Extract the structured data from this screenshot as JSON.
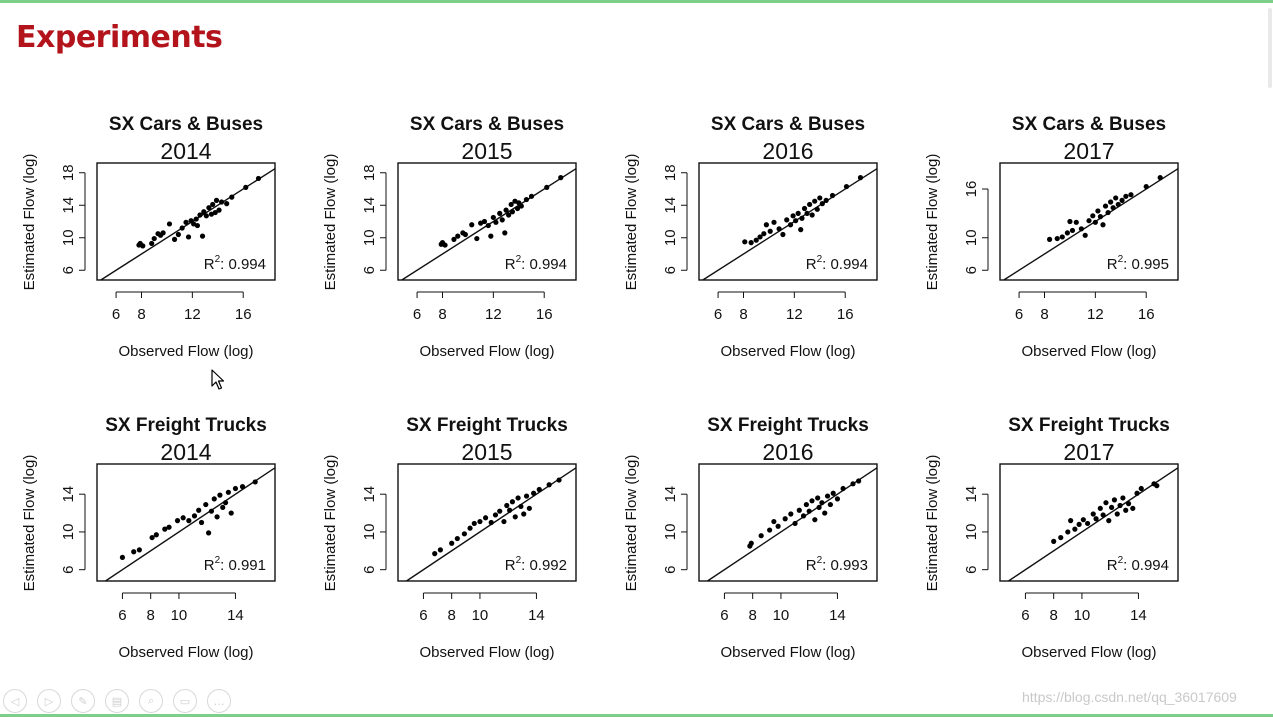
{
  "slide": {
    "title": "Experiments",
    "watermark": "https://blog.csdn.net/qq_36017609"
  },
  "toolbar": {
    "buttons": [
      {
        "name": "previous-icon",
        "glyph": "◁"
      },
      {
        "name": "next-icon",
        "glyph": "▷"
      },
      {
        "name": "pen-icon",
        "glyph": "✎"
      },
      {
        "name": "slides-icon",
        "glyph": "▤"
      },
      {
        "name": "zoom-icon",
        "glyph": "⌕"
      },
      {
        "name": "screen-icon",
        "glyph": "▭"
      },
      {
        "name": "more-icon",
        "glyph": "…"
      }
    ]
  },
  "chart_data": [
    {
      "type": "scatter",
      "title": "SX Cars & Buses",
      "year": "2014",
      "xlabel": "Observed Flow (log)",
      "ylabel": "Estimated Flow (log)",
      "xlim": [
        4.5,
        18.5
      ],
      "ylim": [
        4.8,
        19.2
      ],
      "xticks": [
        6,
        8,
        12,
        16
      ],
      "yticks": [
        6,
        10,
        14,
        18
      ],
      "r2_label": "R",
      "r2_sup": "2",
      "r2_value": ": 0.994",
      "points": [
        [
          7.8,
          9.1
        ],
        [
          7.9,
          9.3
        ],
        [
          8.1,
          9.0
        ],
        [
          8.8,
          9.3
        ],
        [
          9.0,
          9.9
        ],
        [
          9.3,
          10.5
        ],
        [
          9.5,
          10.3
        ],
        [
          9.7,
          10.6
        ],
        [
          10.2,
          11.7
        ],
        [
          10.6,
          9.8
        ],
        [
          10.9,
          10.4
        ],
        [
          11.2,
          11.2
        ],
        [
          11.5,
          11.9
        ],
        [
          11.7,
          10.1
        ],
        [
          11.9,
          12.1
        ],
        [
          12.1,
          11.7
        ],
        [
          12.3,
          12.3
        ],
        [
          12.4,
          11.5
        ],
        [
          12.6,
          12.8
        ],
        [
          12.8,
          10.2
        ],
        [
          12.9,
          13.2
        ],
        [
          13.1,
          12.7
        ],
        [
          13.3,
          13.7
        ],
        [
          13.5,
          12.9
        ],
        [
          13.6,
          14.1
        ],
        [
          13.8,
          13.1
        ],
        [
          13.9,
          14.6
        ],
        [
          14.1,
          13.4
        ],
        [
          14.3,
          14.4
        ],
        [
          14.7,
          14.2
        ],
        [
          15.1,
          15.0
        ],
        [
          16.2,
          16.2
        ],
        [
          17.2,
          17.3
        ]
      ]
    },
    {
      "type": "scatter",
      "title": "SX Cars & Buses",
      "year": "2015",
      "xlabel": "Observed Flow (log)",
      "ylabel": "Estimated Flow (log)",
      "xlim": [
        4.5,
        18.5
      ],
      "ylim": [
        4.8,
        19.2
      ],
      "xticks": [
        6,
        8,
        12,
        16
      ],
      "yticks": [
        6,
        10,
        14,
        18
      ],
      "r2_label": "R",
      "r2_sup": "2",
      "r2_value": ": 0.994",
      "points": [
        [
          7.9,
          9.2
        ],
        [
          8.0,
          9.4
        ],
        [
          8.2,
          9.1
        ],
        [
          8.9,
          9.8
        ],
        [
          9.2,
          10.2
        ],
        [
          9.6,
          10.6
        ],
        [
          9.8,
          10.4
        ],
        [
          10.3,
          11.6
        ],
        [
          10.7,
          9.9
        ],
        [
          11.0,
          11.8
        ],
        [
          11.3,
          12.0
        ],
        [
          11.6,
          11.5
        ],
        [
          11.8,
          10.2
        ],
        [
          12.0,
          12.5
        ],
        [
          12.2,
          11.9
        ],
        [
          12.5,
          13.0
        ],
        [
          12.7,
          12.2
        ],
        [
          12.9,
          10.6
        ],
        [
          13.0,
          13.4
        ],
        [
          13.2,
          12.8
        ],
        [
          13.4,
          14.1
        ],
        [
          13.5,
          13.2
        ],
        [
          13.7,
          14.5
        ],
        [
          13.9,
          13.6
        ],
        [
          14.0,
          14.3
        ],
        [
          14.2,
          13.9
        ],
        [
          14.6,
          14.7
        ],
        [
          15.0,
          15.1
        ],
        [
          16.2,
          16.2
        ],
        [
          17.3,
          17.4
        ]
      ]
    },
    {
      "type": "scatter",
      "title": "SX Cars & Buses",
      "year": "2016",
      "xlabel": "Observed Flow (log)",
      "ylabel": "Estimated Flow (log)",
      "xlim": [
        4.5,
        18.5
      ],
      "ylim": [
        4.8,
        19.2
      ],
      "xticks": [
        6,
        8,
        12,
        16
      ],
      "yticks": [
        6,
        10,
        14,
        18
      ],
      "r2_label": "R",
      "r2_sup": "2",
      "r2_value": ": 0.994",
      "points": [
        [
          8.1,
          9.5
        ],
        [
          8.6,
          9.4
        ],
        [
          9.0,
          9.7
        ],
        [
          9.3,
          10.1
        ],
        [
          9.6,
          10.5
        ],
        [
          9.8,
          11.6
        ],
        [
          10.1,
          10.8
        ],
        [
          10.4,
          11.9
        ],
        [
          10.8,
          11.1
        ],
        [
          11.1,
          10.4
        ],
        [
          11.4,
          12.2
        ],
        [
          11.7,
          11.6
        ],
        [
          11.9,
          12.7
        ],
        [
          12.1,
          12.1
        ],
        [
          12.3,
          13.0
        ],
        [
          12.5,
          11.0
        ],
        [
          12.6,
          12.4
        ],
        [
          12.8,
          13.6
        ],
        [
          13.0,
          13.0
        ],
        [
          13.2,
          14.1
        ],
        [
          13.4,
          12.8
        ],
        [
          13.6,
          14.5
        ],
        [
          13.8,
          13.5
        ],
        [
          14.0,
          14.9
        ],
        [
          14.2,
          14.2
        ],
        [
          14.5,
          14.6
        ],
        [
          15.0,
          15.2
        ],
        [
          16.1,
          16.3
        ],
        [
          17.2,
          17.4
        ]
      ]
    },
    {
      "type": "scatter",
      "title": "SX Cars & Buses",
      "year": "2017",
      "xlabel": "Observed Flow (log)",
      "ylabel": "Estimated Flow (log)",
      "xlim": [
        4.5,
        18.5
      ],
      "ylim": [
        4.8,
        19.2
      ],
      "xticks": [
        6,
        8,
        12,
        16
      ],
      "yticks": [
        6,
        10,
        16
      ],
      "r2_label": "R",
      "r2_sup": "2",
      "r2_value": ": 0.995",
      "points": [
        [
          8.4,
          9.8
        ],
        [
          9.0,
          9.9
        ],
        [
          9.4,
          10.1
        ],
        [
          9.8,
          10.6
        ],
        [
          10.0,
          12.0
        ],
        [
          10.2,
          10.9
        ],
        [
          10.5,
          11.9
        ],
        [
          10.9,
          11.1
        ],
        [
          11.2,
          10.3
        ],
        [
          11.5,
          12.1
        ],
        [
          11.8,
          12.7
        ],
        [
          12.0,
          11.9
        ],
        [
          12.2,
          13.3
        ],
        [
          12.4,
          12.6
        ],
        [
          12.6,
          11.6
        ],
        [
          12.8,
          13.9
        ],
        [
          13.0,
          13.1
        ],
        [
          13.2,
          14.4
        ],
        [
          13.4,
          13.7
        ],
        [
          13.6,
          14.9
        ],
        [
          13.8,
          14.1
        ],
        [
          14.1,
          14.6
        ],
        [
          14.4,
          15.1
        ],
        [
          14.8,
          15.3
        ],
        [
          16.0,
          16.3
        ],
        [
          17.1,
          17.4
        ]
      ]
    },
    {
      "type": "scatter",
      "title": "SX Freight Trucks",
      "year": "2014",
      "xlabel": "Observed Flow (log)",
      "ylabel": "Estimated Flow (log)",
      "xlim": [
        4.2,
        16.8
      ],
      "ylim": [
        4.8,
        17.2
      ],
      "xticks": [
        6,
        8,
        10,
        14
      ],
      "yticks": [
        6,
        10,
        14
      ],
      "r2_label": "R",
      "r2_sup": "2",
      "r2_value": ": 0.991",
      "points": [
        [
          6.0,
          7.3
        ],
        [
          6.8,
          7.9
        ],
        [
          7.2,
          8.1
        ],
        [
          8.1,
          9.4
        ],
        [
          8.4,
          9.7
        ],
        [
          9.0,
          10.3
        ],
        [
          9.3,
          10.5
        ],
        [
          9.9,
          11.2
        ],
        [
          10.3,
          11.5
        ],
        [
          10.7,
          11.2
        ],
        [
          11.1,
          11.7
        ],
        [
          11.4,
          12.3
        ],
        [
          11.6,
          11.0
        ],
        [
          11.9,
          12.9
        ],
        [
          12.1,
          9.9
        ],
        [
          12.3,
          12.2
        ],
        [
          12.5,
          13.5
        ],
        [
          12.7,
          11.6
        ],
        [
          12.9,
          13.9
        ],
        [
          13.1,
          12.6
        ],
        [
          13.3,
          13.1
        ],
        [
          13.5,
          14.2
        ],
        [
          13.7,
          12.0
        ],
        [
          14.0,
          14.6
        ],
        [
          14.5,
          14.8
        ],
        [
          15.4,
          15.3
        ]
      ]
    },
    {
      "type": "scatter",
      "title": "SX Freight Trucks",
      "year": "2015",
      "xlabel": "Observed Flow (log)",
      "ylabel": "Estimated Flow (log)",
      "xlim": [
        4.2,
        16.8
      ],
      "ylim": [
        4.8,
        17.2
      ],
      "xticks": [
        6,
        8,
        10,
        14
      ],
      "yticks": [
        6,
        10,
        14
      ],
      "r2_label": "R",
      "r2_sup": "2",
      "r2_value": ": 0.992",
      "points": [
        [
          6.8,
          7.7
        ],
        [
          7.2,
          8.1
        ],
        [
          8.0,
          8.8
        ],
        [
          8.4,
          9.3
        ],
        [
          8.9,
          9.8
        ],
        [
          9.3,
          10.4
        ],
        [
          9.6,
          10.9
        ],
        [
          10.0,
          11.1
        ],
        [
          10.4,
          11.5
        ],
        [
          10.8,
          11.0
        ],
        [
          11.1,
          11.8
        ],
        [
          11.4,
          12.2
        ],
        [
          11.7,
          11.1
        ],
        [
          11.9,
          12.8
        ],
        [
          12.1,
          12.3
        ],
        [
          12.3,
          13.2
        ],
        [
          12.5,
          11.6
        ],
        [
          12.7,
          13.6
        ],
        [
          12.9,
          12.7
        ],
        [
          13.1,
          11.9
        ],
        [
          13.3,
          13.8
        ],
        [
          13.5,
          12.5
        ],
        [
          13.8,
          14.1
        ],
        [
          14.2,
          14.5
        ],
        [
          14.9,
          15.0
        ],
        [
          15.6,
          15.5
        ]
      ]
    },
    {
      "type": "scatter",
      "title": "SX Freight Trucks",
      "year": "2016",
      "xlabel": "Observed Flow (log)",
      "ylabel": "Estimated Flow (log)",
      "xlim": [
        4.2,
        16.8
      ],
      "ylim": [
        4.8,
        17.2
      ],
      "xticks": [
        6,
        8,
        10,
        14
      ],
      "yticks": [
        6,
        10,
        14
      ],
      "r2_label": "R",
      "r2_sup": "2",
      "r2_value": ": 0.993",
      "points": [
        [
          7.8,
          8.5
        ],
        [
          7.9,
          8.8
        ],
        [
          8.6,
          9.6
        ],
        [
          9.2,
          10.2
        ],
        [
          9.5,
          11.1
        ],
        [
          9.8,
          10.6
        ],
        [
          10.3,
          11.4
        ],
        [
          10.7,
          11.9
        ],
        [
          11.0,
          10.9
        ],
        [
          11.3,
          12.3
        ],
        [
          11.6,
          11.7
        ],
        [
          11.8,
          12.9
        ],
        [
          12.0,
          12.2
        ],
        [
          12.2,
          13.3
        ],
        [
          12.4,
          11.3
        ],
        [
          12.6,
          13.6
        ],
        [
          12.7,
          12.6
        ],
        [
          12.9,
          13.1
        ],
        [
          13.1,
          12.0
        ],
        [
          13.3,
          13.8
        ],
        [
          13.5,
          12.9
        ],
        [
          13.7,
          14.1
        ],
        [
          14.0,
          13.5
        ],
        [
          14.4,
          14.6
        ],
        [
          15.1,
          15.1
        ],
        [
          15.5,
          15.4
        ]
      ]
    },
    {
      "type": "scatter",
      "title": "SX Freight Trucks",
      "year": "2017",
      "xlabel": "Observed Flow (log)",
      "ylabel": "Estimated Flow (log)",
      "xlim": [
        4.2,
        16.8
      ],
      "ylim": [
        4.8,
        17.2
      ],
      "xticks": [
        6,
        8,
        10,
        14
      ],
      "yticks": [
        6,
        10,
        14
      ],
      "r2_label": "R",
      "r2_sup": "2",
      "r2_value": ": 0.994",
      "points": [
        [
          8.0,
          9.0
        ],
        [
          8.5,
          9.4
        ],
        [
          9.0,
          10.0
        ],
        [
          9.2,
          11.2
        ],
        [
          9.5,
          10.3
        ],
        [
          9.8,
          10.8
        ],
        [
          10.1,
          11.3
        ],
        [
          10.4,
          10.9
        ],
        [
          10.8,
          11.9
        ],
        [
          11.0,
          11.4
        ],
        [
          11.3,
          12.5
        ],
        [
          11.5,
          11.8
        ],
        [
          11.7,
          13.1
        ],
        [
          11.9,
          11.2
        ],
        [
          12.1,
          12.6
        ],
        [
          12.3,
          13.4
        ],
        [
          12.5,
          11.9
        ],
        [
          12.7,
          12.8
        ],
        [
          12.9,
          13.6
        ],
        [
          13.1,
          12.3
        ],
        [
          13.3,
          13.0
        ],
        [
          13.6,
          12.5
        ],
        [
          13.9,
          14.1
        ],
        [
          14.2,
          14.6
        ],
        [
          15.1,
          15.1
        ],
        [
          15.3,
          14.9
        ]
      ]
    }
  ]
}
